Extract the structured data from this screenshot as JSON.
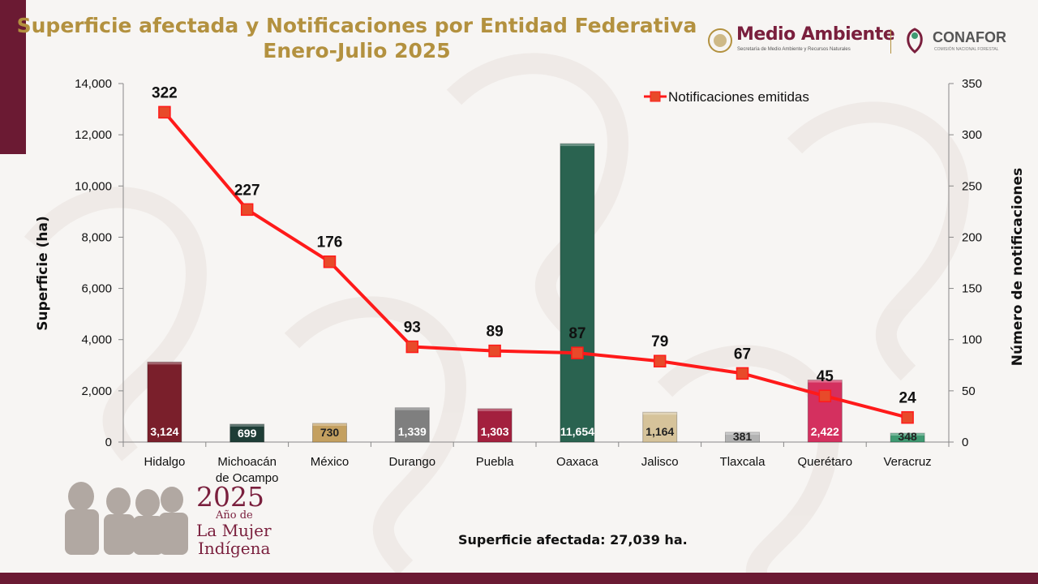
{
  "header": {
    "title_line1": "Superficie afectada y Notificaciones por Entidad Federativa",
    "title_line2": "Enero-Julio 2025"
  },
  "logos": {
    "medio_ambiente": "Medio Ambiente",
    "medio_ambiente_sub": "Secretaría de Medio Ambiente y Recursos Naturales",
    "conafor": "CONAFOR",
    "conafor_sub": "COMISIÓN NACIONAL FORESTAL"
  },
  "year_badge": {
    "year": "2025",
    "line2": "Año de",
    "line3": "La Mujer",
    "line4": "Indígena"
  },
  "footer": {
    "note": "Superficie afectada: 27,039  ha."
  },
  "colors": {
    "line": "#ff1a1a",
    "marker": "#e84a2a",
    "title": "#b3913f",
    "brand": "#6b1a33"
  },
  "chart_data": {
    "type": "bar",
    "categories": [
      "Hidalgo",
      "Michoacán de Ocampo",
      "México",
      "Durango",
      "Puebla",
      "Oaxaca",
      "Jalisco",
      "Tlaxcala",
      "Querétaro",
      "Veracruz"
    ],
    "category_lines": [
      [
        "Hidalgo"
      ],
      [
        "Michoacán",
        "de Ocampo"
      ],
      [
        "México"
      ],
      [
        "Durango"
      ],
      [
        "Puebla"
      ],
      [
        "Oaxaca"
      ],
      [
        "Jalisco"
      ],
      [
        "Tlaxcala"
      ],
      [
        "Querétaro"
      ],
      [
        "Veracruz"
      ]
    ],
    "bar_series": {
      "values": [
        3124,
        699,
        730,
        1339,
        1303,
        11654,
        1164,
        381,
        2422,
        348
      ],
      "labels": [
        "3,124",
        "699",
        "730",
        "1,339",
        "1,303",
        "11,654",
        "1,164",
        "381",
        "2,422",
        "348"
      ],
      "colors": [
        "#7a1f2b",
        "#1e3d36",
        "#c4a060",
        "#7f7f7f",
        "#a3203e",
        "#2a6350",
        "#d6c39a",
        "#b3b3b3",
        "#d4305f",
        "#3f9a72"
      ],
      "label_colors": [
        "#ffffff",
        "#ffffff",
        "#222222",
        "#ffffff",
        "#ffffff",
        "#ffffff",
        "#222222",
        "#222222",
        "#ffffff",
        "#222222"
      ]
    },
    "line_series": {
      "name": "Notificaciones emitidas",
      "values": [
        322,
        227,
        176,
        93,
        89,
        87,
        79,
        67,
        45,
        24
      ]
    },
    "ylabel": "Superficie (ha)",
    "y2label": "Número de notificaciones",
    "ylim": [
      0,
      14000
    ],
    "y2lim": [
      0,
      350
    ],
    "y_ticks": [
      "0",
      "2,000",
      "4,000",
      "6,000",
      "8,000",
      "10,000",
      "12,000",
      "14,000"
    ],
    "y2_ticks": [
      "0",
      "50",
      "100",
      "150",
      "200",
      "250",
      "300",
      "350"
    ],
    "legend_position": "top-right",
    "grid": false
  }
}
